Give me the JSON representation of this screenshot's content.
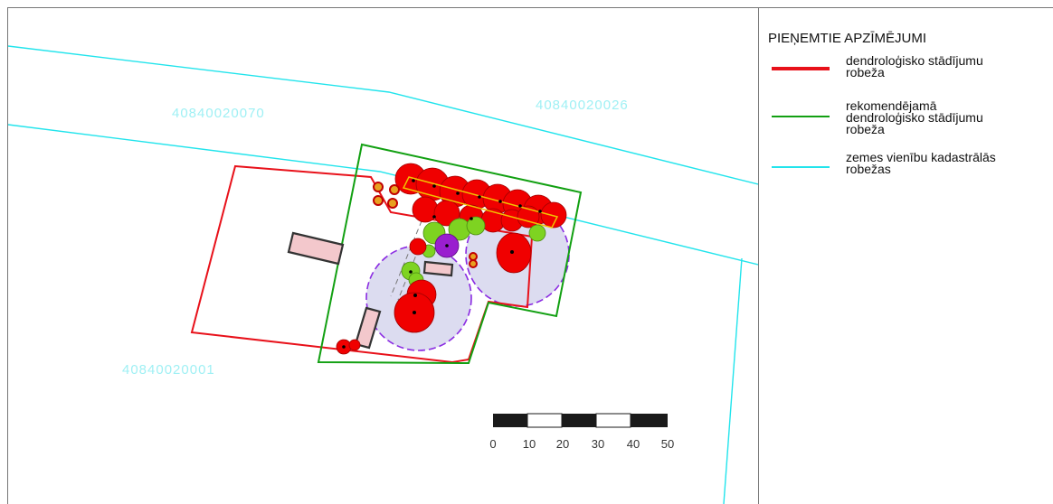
{
  "map": {
    "parcels": [
      {
        "id": "parcel-a",
        "label": "40840020070"
      },
      {
        "id": "parcel-b",
        "label": "40840020026"
      },
      {
        "id": "parcel-c",
        "label": "40840020001"
      }
    ],
    "scale_bar": {
      "ticks": [
        "0",
        "10",
        "20",
        "30",
        "40",
        "50"
      ]
    },
    "colors": {
      "boundary_red": "#e8111a",
      "boundary_green": "#12a012",
      "cadastral_cyan": "#22e4ec",
      "tree_red": "#f00000",
      "tree_green": "#7ed321",
      "tree_purple": "#9a1fcf",
      "tree_orange": "#e8a020",
      "building_fill": "#f3c8cc",
      "zone_fill": "#dcdcf0",
      "zone_border": "#8a2be2"
    }
  },
  "legend": {
    "title": "PIEŅEMTIE APZĪMĒJUMI",
    "items": [
      {
        "label_lines": [
          "dendroloģisko stādījumu",
          "robeža"
        ],
        "color": "#e8111a"
      },
      {
        "label_lines": [
          "rekomendējamā",
          "dendroloģisko stādījumu",
          "robeža"
        ],
        "color": "#12a012"
      },
      {
        "label_lines": [
          "zemes vienību kadastrālās",
          "robežas"
        ],
        "color": "#22e4ec"
      }
    ]
  }
}
